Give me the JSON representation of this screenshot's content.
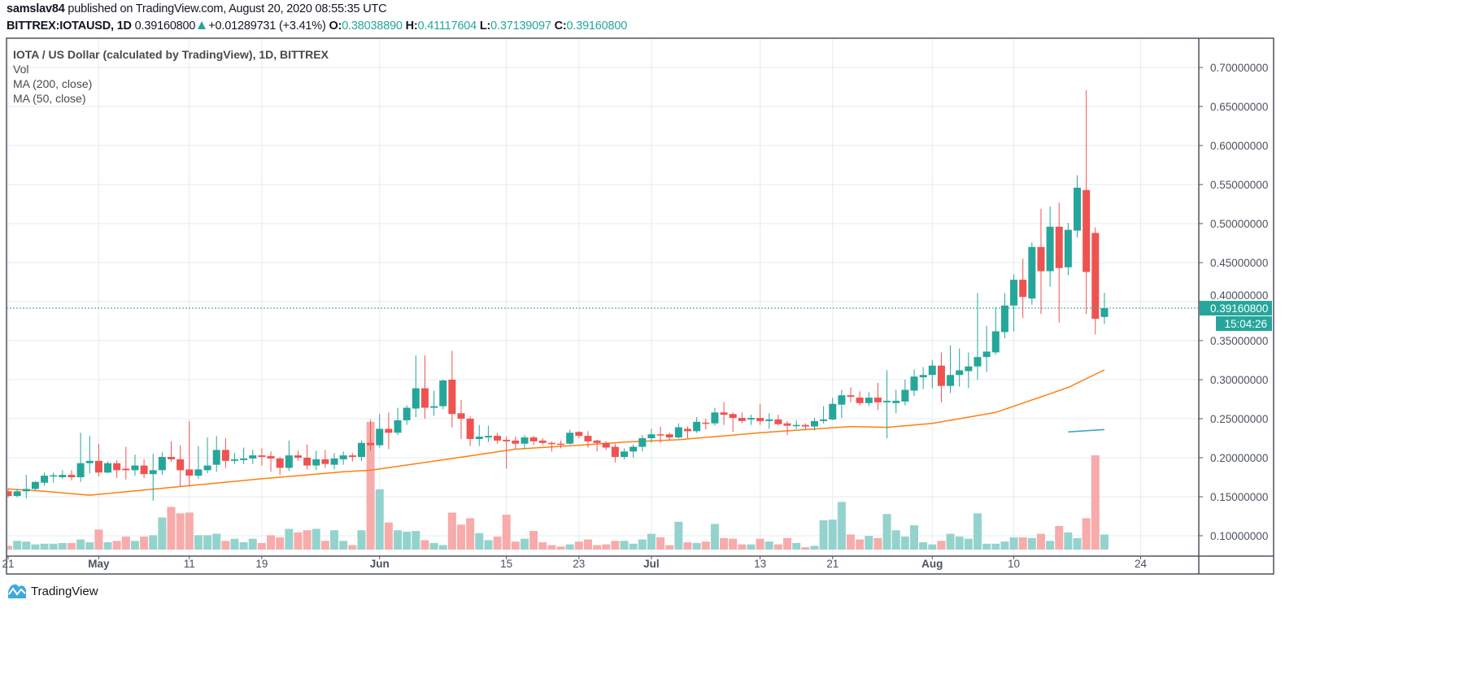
{
  "header": {
    "author": "samslav84",
    "published": " published on TradingView.com, August 20, 2020 08:55:35 UTC",
    "symbol": "BITTREX:IOTAUSD, 1D",
    "last": "0.39160800",
    "change": "+0.01289731 (+3.41%)",
    "direction_icon": "triangle-up-icon",
    "o_label": "O:",
    "o": "0.38038890",
    "h_label": "H:",
    "h": "0.41117604",
    "l_label": "L:",
    "l": "0.37139097",
    "c_label": "C:",
    "c": "0.39160800"
  },
  "legend": {
    "title": "IOTA / US Dollar (calculated by TradingView), 1D, BITTREX",
    "vol": "Vol",
    "ma200": "MA (200, close)",
    "ma50": "MA (50, close)"
  },
  "price_label": {
    "value": "0.39160800",
    "countdown": "15:04:26"
  },
  "logo": {
    "text": "TradingView"
  },
  "colors": {
    "up": "#26a69a",
    "down": "#ef5350",
    "vol_up": "#94d3cd",
    "vol_down": "#f7abaa",
    "ma50": "#ff7f0e",
    "ma200": "#2aa3c8",
    "grid": "#e3ebf2",
    "axis_text": "#4c525e",
    "border": "#50535e"
  },
  "chart_data": {
    "type": "candlestick",
    "title": "IOTA / US Dollar (calculated by TradingView), 1D, BITTREX",
    "ylim": [
      0.08,
      0.74
    ],
    "grid": true,
    "y_ticks": [
      "0.10000000",
      "0.15000000",
      "0.20000000",
      "0.25000000",
      "0.30000000",
      "0.35000000",
      "0.40000000",
      "0.45000000",
      "0.50000000",
      "0.55000000",
      "0.60000000",
      "0.65000000",
      "0.70000000"
    ],
    "x_ticks": [
      {
        "date": "2020-04-21",
        "label": "21",
        "month": false
      },
      {
        "date": "2020-05-01",
        "label": "May",
        "month": true
      },
      {
        "date": "2020-05-11",
        "label": "11",
        "month": false
      },
      {
        "date": "2020-05-19",
        "label": "19",
        "month": false
      },
      {
        "date": "2020-06-01",
        "label": "Jun",
        "month": true
      },
      {
        "date": "2020-06-15",
        "label": "15",
        "month": false
      },
      {
        "date": "2020-06-23",
        "label": "23",
        "month": false
      },
      {
        "date": "2020-07-01",
        "label": "Jul",
        "month": true
      },
      {
        "date": "2020-07-13",
        "label": "13",
        "month": false
      },
      {
        "date": "2020-07-21",
        "label": "21",
        "month": false
      },
      {
        "date": "2020-08-01",
        "label": "Aug",
        "month": true
      },
      {
        "date": "2020-08-10",
        "label": "10",
        "month": false
      },
      {
        "date": "2020-08-24",
        "label": "24",
        "month": false
      }
    ],
    "candle_fields": [
      "date",
      "open",
      "high",
      "low",
      "close",
      "volume_relative"
    ],
    "candles": [
      [
        "2020-04-21",
        0.157,
        0.161,
        0.149,
        0.151,
        16
      ],
      [
        "2020-04-22",
        0.151,
        0.16,
        0.149,
        0.157,
        37
      ],
      [
        "2020-04-23",
        0.157,
        0.178,
        0.148,
        0.16,
        34
      ],
      [
        "2020-04-24",
        0.16,
        0.17,
        0.158,
        0.169,
        22
      ],
      [
        "2020-04-25",
        0.168,
        0.181,
        0.164,
        0.177,
        25
      ],
      [
        "2020-04-26",
        0.177,
        0.181,
        0.168,
        0.1775,
        25
      ],
      [
        "2020-04-27",
        0.175,
        0.184,
        0.173,
        0.178,
        28
      ],
      [
        "2020-04-28",
        0.178,
        0.184,
        0.171,
        0.175,
        28
      ],
      [
        "2020-04-29",
        0.175,
        0.232,
        0.169,
        0.193,
        43
      ],
      [
        "2020-04-30",
        0.193,
        0.228,
        0.18,
        0.196,
        31
      ],
      [
        "2020-05-01",
        0.196,
        0.218,
        0.176,
        0.181,
        85
      ],
      [
        "2020-05-02",
        0.181,
        0.195,
        0.18,
        0.193,
        31
      ],
      [
        "2020-05-03",
        0.193,
        0.197,
        0.174,
        0.184,
        37
      ],
      [
        "2020-05-04",
        0.186,
        0.214,
        0.172,
        0.184,
        55
      ],
      [
        "2020-05-05",
        0.184,
        0.204,
        0.177,
        0.19,
        37
      ],
      [
        "2020-05-06",
        0.19,
        0.198,
        0.174,
        0.179,
        55
      ],
      [
        "2020-05-07",
        0.179,
        0.205,
        0.145,
        0.184,
        61
      ],
      [
        "2020-05-08",
        0.184,
        0.207,
        0.178,
        0.201,
        136
      ],
      [
        "2020-05-09",
        0.201,
        0.221,
        0.195,
        0.198,
        181
      ],
      [
        "2020-05-10",
        0.198,
        0.216,
        0.163,
        0.184,
        154
      ],
      [
        "2020-05-11",
        0.185,
        0.247,
        0.163,
        0.177,
        157
      ],
      [
        "2020-05-12",
        0.177,
        0.215,
        0.173,
        0.185,
        61
      ],
      [
        "2020-05-13",
        0.184,
        0.226,
        0.18,
        0.19,
        61
      ],
      [
        "2020-05-14",
        0.191,
        0.228,
        0.182,
        0.21,
        67
      ],
      [
        "2020-05-15",
        0.21,
        0.225,
        0.187,
        0.196,
        37
      ],
      [
        "2020-05-16",
        0.196,
        0.206,
        0.192,
        0.198,
        46
      ],
      [
        "2020-05-17",
        0.197,
        0.213,
        0.192,
        0.199,
        31
      ],
      [
        "2020-05-18",
        0.199,
        0.21,
        0.192,
        0.203,
        46
      ],
      [
        "2020-05-19",
        0.203,
        0.212,
        0.19,
        0.201,
        28
      ],
      [
        "2020-05-20",
        0.202,
        0.208,
        0.182,
        0.199,
        61
      ],
      [
        "2020-05-21",
        0.199,
        0.201,
        0.178,
        0.187,
        52
      ],
      [
        "2020-05-22",
        0.187,
        0.222,
        0.183,
        0.203,
        88
      ],
      [
        "2020-05-23",
        0.203,
        0.209,
        0.196,
        0.2,
        73
      ],
      [
        "2020-05-24",
        0.2,
        0.217,
        0.185,
        0.19,
        82
      ],
      [
        "2020-05-25",
        0.19,
        0.209,
        0.184,
        0.198,
        88
      ],
      [
        "2020-05-26",
        0.198,
        0.21,
        0.187,
        0.192,
        37
      ],
      [
        "2020-05-27",
        0.191,
        0.206,
        0.185,
        0.199,
        82
      ],
      [
        "2020-05-28",
        0.198,
        0.208,
        0.191,
        0.203,
        37
      ],
      [
        "2020-05-29",
        0.203,
        0.206,
        0.195,
        0.201,
        19
      ],
      [
        "2020-05-30",
        0.201,
        0.222,
        0.196,
        0.219,
        82
      ],
      [
        "2020-05-31",
        0.219,
        0.249,
        0.209,
        0.216,
        542
      ],
      [
        "2020-06-01",
        0.216,
        0.256,
        0.213,
        0.237,
        256
      ],
      [
        "2020-06-02",
        0.237,
        0.258,
        0.211,
        0.232,
        115
      ],
      [
        "2020-06-03",
        0.232,
        0.264,
        0.229,
        0.248,
        82
      ],
      [
        "2020-06-04",
        0.248,
        0.267,
        0.242,
        0.264,
        76
      ],
      [
        "2020-06-05",
        0.263,
        0.331,
        0.252,
        0.289,
        79
      ],
      [
        "2020-06-06",
        0.289,
        0.331,
        0.25,
        0.264,
        40
      ],
      [
        "2020-06-07",
        0.264,
        0.286,
        0.254,
        0.266,
        28
      ],
      [
        "2020-06-08",
        0.266,
        0.3,
        0.262,
        0.299,
        19
      ],
      [
        "2020-06-09",
        0.3,
        0.337,
        0.239,
        0.256,
        157
      ],
      [
        "2020-06-10",
        0.257,
        0.274,
        0.224,
        0.25,
        106
      ],
      [
        "2020-06-11",
        0.25,
        0.253,
        0.215,
        0.224,
        133
      ],
      [
        "2020-06-12",
        0.224,
        0.242,
        0.215,
        0.227,
        70
      ],
      [
        "2020-06-13",
        0.226,
        0.241,
        0.22,
        0.228,
        40
      ],
      [
        "2020-06-14",
        0.228,
        0.232,
        0.218,
        0.222,
        55
      ],
      [
        "2020-06-15",
        0.223,
        0.227,
        0.186,
        0.221,
        148
      ],
      [
        "2020-06-16",
        0.222,
        0.227,
        0.211,
        0.218,
        34
      ],
      [
        "2020-06-17",
        0.218,
        0.229,
        0.211,
        0.226,
        46
      ],
      [
        "2020-06-18",
        0.226,
        0.228,
        0.216,
        0.221,
        79
      ],
      [
        "2020-06-19",
        0.222,
        0.225,
        0.216,
        0.219,
        31
      ],
      [
        "2020-06-20",
        0.219,
        0.221,
        0.208,
        0.218,
        19
      ],
      [
        "2020-06-21",
        0.218,
        0.222,
        0.212,
        0.217,
        13
      ],
      [
        "2020-06-22",
        0.218,
        0.236,
        0.217,
        0.232,
        22
      ],
      [
        "2020-06-23",
        0.233,
        0.234,
        0.225,
        0.228,
        34
      ],
      [
        "2020-06-24",
        0.228,
        0.234,
        0.213,
        0.221,
        43
      ],
      [
        "2020-06-25",
        0.222,
        0.223,
        0.208,
        0.219,
        19
      ],
      [
        "2020-06-26",
        0.219,
        0.221,
        0.21,
        0.213,
        22
      ],
      [
        "2020-06-27",
        0.214,
        0.218,
        0.194,
        0.201,
        37
      ],
      [
        "2020-06-28",
        0.201,
        0.212,
        0.198,
        0.208,
        37
      ],
      [
        "2020-06-29",
        0.208,
        0.217,
        0.2,
        0.214,
        25
      ],
      [
        "2020-06-30",
        0.214,
        0.229,
        0.208,
        0.225,
        43
      ],
      [
        "2020-07-01",
        0.225,
        0.237,
        0.219,
        0.23,
        67
      ],
      [
        "2020-07-02",
        0.23,
        0.24,
        0.219,
        0.229,
        52
      ],
      [
        "2020-07-03",
        0.23,
        0.232,
        0.223,
        0.226,
        19
      ],
      [
        "2020-07-04",
        0.226,
        0.244,
        0.224,
        0.239,
        118
      ],
      [
        "2020-07-05",
        0.237,
        0.24,
        0.225,
        0.234,
        31
      ],
      [
        "2020-07-06",
        0.234,
        0.252,
        0.232,
        0.246,
        28
      ],
      [
        "2020-07-07",
        0.245,
        0.25,
        0.236,
        0.244,
        34
      ],
      [
        "2020-07-08",
        0.244,
        0.264,
        0.241,
        0.258,
        109
      ],
      [
        "2020-07-09",
        0.258,
        0.271,
        0.242,
        0.255,
        49
      ],
      [
        "2020-07-10",
        0.256,
        0.258,
        0.233,
        0.251,
        46
      ],
      [
        "2020-07-11",
        0.251,
        0.258,
        0.244,
        0.247,
        22
      ],
      [
        "2020-07-12",
        0.249,
        0.255,
        0.242,
        0.251,
        22
      ],
      [
        "2020-07-13",
        0.251,
        0.269,
        0.242,
        0.247,
        46
      ],
      [
        "2020-07-14",
        0.247,
        0.257,
        0.237,
        0.249,
        34
      ],
      [
        "2020-07-15",
        0.249,
        0.255,
        0.241,
        0.243,
        22
      ],
      [
        "2020-07-16",
        0.244,
        0.247,
        0.229,
        0.241,
        49
      ],
      [
        "2020-07-17",
        0.241,
        0.248,
        0.237,
        0.242,
        28
      ],
      [
        "2020-07-18",
        0.242,
        0.244,
        0.236,
        0.24,
        10
      ],
      [
        "2020-07-19",
        0.24,
        0.251,
        0.235,
        0.247,
        16
      ],
      [
        "2020-07-20",
        0.247,
        0.266,
        0.244,
        0.249,
        124
      ],
      [
        "2020-07-21",
        0.249,
        0.277,
        0.248,
        0.269,
        127
      ],
      [
        "2020-07-22",
        0.268,
        0.287,
        0.251,
        0.28,
        202
      ],
      [
        "2020-07-23",
        0.28,
        0.29,
        0.271,
        0.278,
        64
      ],
      [
        "2020-07-24",
        0.277,
        0.285,
        0.267,
        0.27,
        43
      ],
      [
        "2020-07-25",
        0.27,
        0.284,
        0.266,
        0.277,
        58
      ],
      [
        "2020-07-26",
        0.277,
        0.296,
        0.261,
        0.271,
        49
      ],
      [
        "2020-07-27",
        0.271,
        0.312,
        0.225,
        0.273,
        151
      ],
      [
        "2020-07-28",
        0.27,
        0.287,
        0.257,
        0.273,
        82
      ],
      [
        "2020-07-29",
        0.272,
        0.3,
        0.267,
        0.287,
        55
      ],
      [
        "2020-07-30",
        0.286,
        0.313,
        0.279,
        0.304,
        103
      ],
      [
        "2020-07-31",
        0.303,
        0.316,
        0.288,
        0.306,
        31
      ],
      [
        "2020-08-01",
        0.306,
        0.325,
        0.289,
        0.318,
        22
      ],
      [
        "2020-08-02",
        0.318,
        0.335,
        0.271,
        0.292,
        37
      ],
      [
        "2020-08-03",
        0.292,
        0.344,
        0.283,
        0.306,
        67
      ],
      [
        "2020-08-04",
        0.306,
        0.34,
        0.291,
        0.312,
        55
      ],
      [
        "2020-08-05",
        0.311,
        0.335,
        0.289,
        0.317,
        46
      ],
      [
        "2020-08-06",
        0.317,
        0.411,
        0.3,
        0.329,
        154
      ],
      [
        "2020-08-07",
        0.329,
        0.369,
        0.31,
        0.336,
        25
      ],
      [
        "2020-08-08",
        0.335,
        0.393,
        0.332,
        0.362,
        25
      ],
      [
        "2020-08-09",
        0.361,
        0.411,
        0.353,
        0.395,
        34
      ],
      [
        "2020-08-10",
        0.395,
        0.435,
        0.362,
        0.428,
        52
      ],
      [
        "2020-08-11",
        0.428,
        0.455,
        0.379,
        0.406,
        52
      ],
      [
        "2020-08-12",
        0.404,
        0.476,
        0.396,
        0.47,
        49
      ],
      [
        "2020-08-13",
        0.47,
        0.519,
        0.384,
        0.439,
        67
      ],
      [
        "2020-08-14",
        0.439,
        0.522,
        0.419,
        0.496,
        37
      ],
      [
        "2020-08-15",
        0.496,
        0.527,
        0.373,
        0.443,
        100
      ],
      [
        "2020-08-16",
        0.444,
        0.501,
        0.434,
        0.492,
        73
      ],
      [
        "2020-08-17",
        0.491,
        0.562,
        0.482,
        0.546,
        49
      ],
      [
        "2020-08-18",
        0.543,
        0.671,
        0.384,
        0.438,
        133
      ],
      [
        "2020-08-19",
        0.488,
        0.495,
        0.358,
        0.378,
        400
      ],
      [
        "2020-08-20",
        0.3803889,
        0.41117604,
        0.37139097,
        0.391608,
        64
      ]
    ],
    "ma50": [
      [
        "2020-04-21",
        0.16
      ],
      [
        "2020-04-25",
        0.157
      ],
      [
        "2020-04-30",
        0.152
      ],
      [
        "2020-05-09",
        0.162
      ],
      [
        "2020-05-18",
        0.172
      ],
      [
        "2020-05-28",
        0.182
      ],
      [
        "2020-05-31",
        0.184
      ],
      [
        "2020-06-09",
        0.199
      ],
      [
        "2020-06-16",
        0.211
      ],
      [
        "2020-06-23",
        0.216
      ],
      [
        "2020-06-28",
        0.22
      ],
      [
        "2020-07-04",
        0.223
      ],
      [
        "2020-07-13",
        0.232
      ],
      [
        "2020-07-23",
        0.24
      ],
      [
        "2020-07-27",
        0.239
      ],
      [
        "2020-08-01",
        0.244
      ],
      [
        "2020-08-04",
        0.25
      ],
      [
        "2020-08-08",
        0.258
      ],
      [
        "2020-08-11",
        0.27
      ],
      [
        "2020-08-16",
        0.29
      ],
      [
        "2020-08-20",
        0.3125
      ]
    ],
    "ma200": [
      [
        "2020-08-16",
        0.233
      ],
      [
        "2020-08-20",
        0.236
      ]
    ],
    "last_price": 0.391608
  }
}
